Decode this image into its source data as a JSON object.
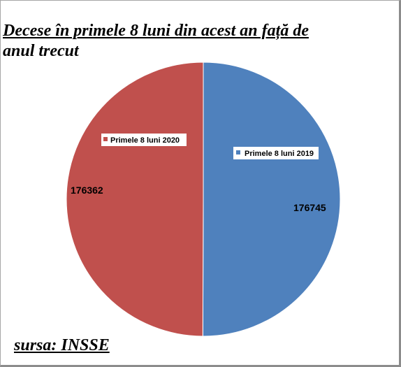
{
  "chart_data": {
    "type": "pie",
    "title_line1": "Decese în primele 8 luni din acest an față de",
    "title_line2": "anul trecut",
    "slices": [
      {
        "name": "Primele 8 luni 2019",
        "value": 176745,
        "color": "#4f81bd"
      },
      {
        "name": "Primele 8 luni 2020",
        "value": 176362,
        "color": "#c0504d"
      }
    ],
    "source": "sursa: INSSE"
  }
}
